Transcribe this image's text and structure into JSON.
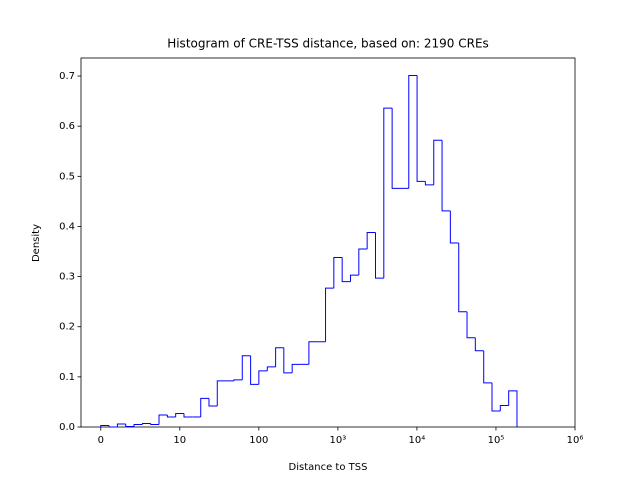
{
  "chart_data": {
    "type": "histogram",
    "title": "Histogram of CRE-TSS distance, based on: 2190 CREs",
    "xlabel": "Distance to TSS",
    "ylabel": "Density",
    "xscale": "symlog",
    "linthresh": 10,
    "bins": [
      0,
      1.05,
      2.11,
      3.16,
      4.21,
      5.27,
      6.32,
      7.37,
      8.43,
      9.48,
      11.3,
      14.4,
      18.4,
      23.4,
      29.8,
      38.0,
      48.4,
      61.7,
      78.7,
      100,
      128,
      163,
      207,
      264,
      337,
      430,
      548,
      698,
      889,
      1133,
      1445,
      1841,
      2346,
      2992,
      3811,
      4857,
      6194,
      7889,
      10046,
      12800,
      16330,
      20800,
      26490,
      33810,
      43050,
      54830,
      69980,
      89130,
      113500,
      144900,
      184500
    ],
    "values": [
      0.003,
      0,
      0.006,
      0.001,
      0.005,
      0.007,
      0.005,
      0.024,
      0.02,
      0.027,
      0.02,
      0.02,
      0.057,
      0.042,
      0.092,
      0.092,
      0.094,
      0.142,
      0.085,
      0.112,
      0.12,
      0.158,
      0.108,
      0.125,
      0.125,
      0.17,
      0.17,
      0.277,
      0.338,
      0.29,
      0.303,
      0.355,
      0.388,
      0.297,
      0.636,
      0.476,
      0.476,
      0.701,
      0.49,
      0.483,
      0.572,
      0.431,
      0.367,
      0.23,
      0.178,
      0.152,
      0.088,
      0.032,
      0.043,
      0.072
    ],
    "color": "#0000ff",
    "xlim": [
      -2.5,
      1000000
    ],
    "xticks": [
      0,
      10,
      100,
      {
        "value": 1000,
        "label": "10³"
      },
      {
        "value": 10000,
        "label": "10⁴"
      },
      {
        "value": 100000,
        "label": "10⁵"
      },
      {
        "value": 1000000,
        "label": "10⁶"
      }
    ],
    "ylim": [
      0,
      0.736
    ],
    "yticks": [
      {
        "value": 0,
        "label": "0.0"
      },
      0.1,
      0.2,
      0.3,
      0.4,
      0.5,
      0.6,
      0.7
    ],
    "grid": false
  }
}
